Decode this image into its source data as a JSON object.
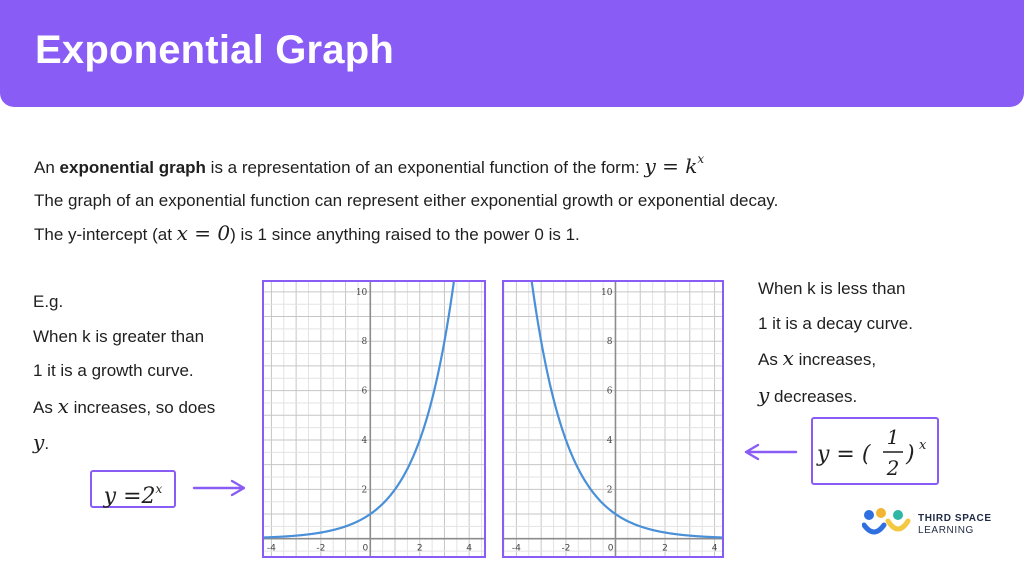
{
  "header": {
    "title": "Exponential Graph",
    "color": "#8a5cf6"
  },
  "intro": {
    "line1_pre": "An ",
    "line1_bold": "exponential graph",
    "line1_post": " is a representation of an exponential function of the form: ",
    "line1_math_base": "y = k",
    "line1_math_exp": "x",
    "line2": "The graph of an exponential function can represent either exponential growth or exponential decay.",
    "line3_pre": "The y-intercept (at ",
    "line3_math": "x = 0",
    "line3_post": ") is 1 since anything raised to the power 0 is 1."
  },
  "left_panel": {
    "eg": "E.g.",
    "line1": "When k is greater than",
    "line2": "1 it is a growth curve.",
    "line3_pre": "As ",
    "line3_var": "x",
    "line3_post": " increases, so does",
    "line4_var": "y",
    "line4_post": ".",
    "equation_base": "y =2",
    "equation_exp": "x"
  },
  "right_panel": {
    "line1": "When k is less than",
    "line2": "1 it is a decay curve.",
    "line3_pre": "As ",
    "line3_var": "x",
    "line3_post": " increases,",
    "line4_var": "y",
    "line4_post": " decreases.",
    "equation_lhs": "y = (",
    "equation_num": "1",
    "equation_den": "2",
    "equation_rhs": ")",
    "equation_exp": "x"
  },
  "chart_data": [
    {
      "type": "line",
      "function": "y = 2^x",
      "xlim": [
        -4.3,
        4.6
      ],
      "ylim": [
        -0.7,
        10.4
      ],
      "x_ticks": [
        "-4",
        "-2",
        "0",
        "2",
        "4"
      ],
      "y_ticks": [
        "2",
        "4",
        "6",
        "8",
        "10"
      ],
      "grid": true,
      "line_color": "#4a90d9"
    },
    {
      "type": "line",
      "function": "y = (1/2)^x",
      "xlim": [
        -4.5,
        4.3
      ],
      "ylim": [
        -0.7,
        10.4
      ],
      "x_ticks": [
        "-4",
        "-2",
        "0",
        "2",
        "4"
      ],
      "y_ticks": [
        "2",
        "4",
        "6",
        "8",
        "10"
      ],
      "grid": true,
      "line_color": "#4a90d9"
    }
  ],
  "logo": {
    "line1": "THIRD SPACE",
    "line2": "LEARNING"
  }
}
